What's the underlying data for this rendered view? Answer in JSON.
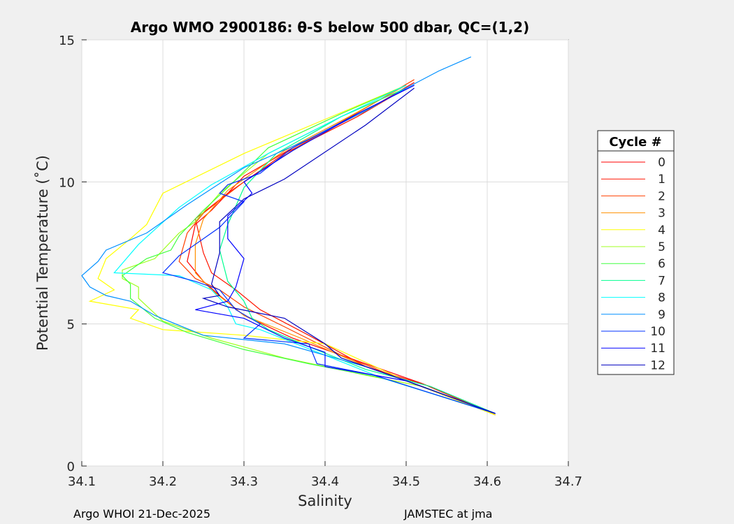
{
  "chart_data": {
    "type": "line",
    "title": "Argo WMO 2900186: θ-S below 500 dbar,  QC=(1,2)",
    "xlabel": "Salinity",
    "ylabel": "Potential Temperature (˚C)",
    "xlim": [
      34.1,
      34.7
    ],
    "ylim": [
      0,
      15
    ],
    "xticks": [
      "34.1",
      "34.2",
      "34.3",
      "34.4",
      "34.5",
      "34.6",
      "34.7"
    ],
    "yticks": [
      "0",
      "5",
      "10",
      "15"
    ],
    "grid": true,
    "legend": {
      "title": "Cycle #",
      "placement": "right"
    },
    "series": [
      {
        "name": "0",
        "color": "#ff0000",
        "points": [
          [
            34.51,
            13.5
          ],
          [
            34.45,
            12.5
          ],
          [
            34.36,
            11.2
          ],
          [
            34.3,
            10.2
          ],
          [
            34.26,
            9.0
          ],
          [
            34.24,
            8.5
          ],
          [
            34.23,
            7.2
          ],
          [
            34.25,
            6.5
          ],
          [
            34.27,
            6.0
          ],
          [
            34.3,
            5.3
          ],
          [
            34.36,
            4.5
          ],
          [
            34.45,
            3.6
          ],
          [
            34.52,
            2.9
          ],
          [
            34.61,
            1.8
          ]
        ]
      },
      {
        "name": "1",
        "color": "#ff1500",
        "points": [
          [
            34.5,
            13.3
          ],
          [
            34.44,
            12.3
          ],
          [
            34.35,
            11.0
          ],
          [
            34.28,
            9.6
          ],
          [
            34.24,
            8.7
          ],
          [
            34.25,
            7.5
          ],
          [
            34.26,
            6.8
          ],
          [
            34.29,
            6.2
          ],
          [
            34.32,
            5.5
          ],
          [
            34.38,
            4.6
          ],
          [
            34.45,
            3.5
          ],
          [
            34.53,
            2.8
          ],
          [
            34.61,
            1.8
          ]
        ]
      },
      {
        "name": "2",
        "color": "#ff4000",
        "points": [
          [
            34.51,
            13.6
          ],
          [
            34.45,
            12.6
          ],
          [
            34.37,
            11.3
          ],
          [
            34.3,
            10.0
          ],
          [
            34.25,
            8.9
          ],
          [
            34.23,
            8.2
          ],
          [
            34.22,
            7.2
          ],
          [
            34.24,
            6.6
          ],
          [
            34.27,
            6.2
          ],
          [
            34.3,
            5.6
          ],
          [
            34.35,
            4.9
          ],
          [
            34.42,
            3.9
          ],
          [
            34.5,
            3.0
          ],
          [
            34.61,
            1.8
          ]
        ]
      },
      {
        "name": "3",
        "color": "#ff9000",
        "points": [
          [
            34.5,
            13.4
          ],
          [
            34.43,
            12.3
          ],
          [
            34.35,
            11.1
          ],
          [
            34.28,
            9.7
          ],
          [
            34.25,
            8.7
          ],
          [
            34.24,
            7.8
          ],
          [
            34.24,
            6.8
          ],
          [
            34.26,
            6.2
          ],
          [
            34.3,
            5.3
          ],
          [
            34.37,
            4.5
          ],
          [
            34.45,
            3.5
          ],
          [
            34.52,
            2.8
          ],
          [
            34.61,
            1.8
          ]
        ]
      },
      {
        "name": "4",
        "color": "#ffff00",
        "points": [
          [
            34.5,
            13.4
          ],
          [
            34.4,
            12.2
          ],
          [
            34.3,
            11.0
          ],
          [
            34.2,
            9.6
          ],
          [
            34.18,
            8.5
          ],
          [
            34.16,
            8.0
          ],
          [
            34.13,
            7.3
          ],
          [
            34.12,
            6.6
          ],
          [
            34.14,
            6.2
          ],
          [
            34.11,
            5.8
          ],
          [
            34.17,
            5.5
          ],
          [
            34.16,
            5.2
          ],
          [
            34.2,
            4.8
          ],
          [
            34.3,
            4.6
          ],
          [
            34.4,
            4.3
          ],
          [
            34.5,
            3.0
          ],
          [
            34.61,
            1.8
          ]
        ]
      },
      {
        "name": "5",
        "color": "#a0ff20",
        "points": [
          [
            34.5,
            13.3
          ],
          [
            34.42,
            12.3
          ],
          [
            34.33,
            11.0
          ],
          [
            34.27,
            9.6
          ],
          [
            34.24,
            8.6
          ],
          [
            34.22,
            8.2
          ],
          [
            34.19,
            7.3
          ],
          [
            34.15,
            6.9
          ],
          [
            34.15,
            6.6
          ],
          [
            34.17,
            6.3
          ],
          [
            34.17,
            5.9
          ],
          [
            34.2,
            5.1
          ],
          [
            34.26,
            4.5
          ],
          [
            34.35,
            3.8
          ],
          [
            34.45,
            3.2
          ],
          [
            34.52,
            2.8
          ],
          [
            34.61,
            1.85
          ]
        ]
      },
      {
        "name": "6",
        "color": "#40ff40",
        "points": [
          [
            34.5,
            13.4
          ],
          [
            34.42,
            12.4
          ],
          [
            34.33,
            11.2
          ],
          [
            34.28,
            9.8
          ],
          [
            34.25,
            9.0
          ],
          [
            34.22,
            8.1
          ],
          [
            34.21,
            7.6
          ],
          [
            34.18,
            7.3
          ],
          [
            34.15,
            6.7
          ],
          [
            34.16,
            6.4
          ],
          [
            34.16,
            5.9
          ],
          [
            34.19,
            5.2
          ],
          [
            34.23,
            4.7
          ],
          [
            34.3,
            4.1
          ],
          [
            34.38,
            3.6
          ],
          [
            34.47,
            3.1
          ],
          [
            34.61,
            1.85
          ]
        ]
      },
      {
        "name": "7",
        "color": "#00ff90",
        "points": [
          [
            34.5,
            13.3
          ],
          [
            34.42,
            12.3
          ],
          [
            34.34,
            11.0
          ],
          [
            34.3,
            9.8
          ],
          [
            34.28,
            8.5
          ],
          [
            34.27,
            7.6
          ],
          [
            34.28,
            6.5
          ],
          [
            34.3,
            5.8
          ],
          [
            34.31,
            5.2
          ],
          [
            34.33,
            4.8
          ],
          [
            34.38,
            4.2
          ],
          [
            34.45,
            3.4
          ],
          [
            34.53,
            2.8
          ],
          [
            34.61,
            1.85
          ]
        ]
      },
      {
        "name": "8",
        "color": "#00ffff",
        "points": [
          [
            34.5,
            13.4
          ],
          [
            34.42,
            12.3
          ],
          [
            34.33,
            11.0
          ],
          [
            34.26,
            9.9
          ],
          [
            34.22,
            9.1
          ],
          [
            34.17,
            7.8
          ],
          [
            34.14,
            6.8
          ],
          [
            34.22,
            6.7
          ],
          [
            34.26,
            6.2
          ],
          [
            34.28,
            5.6
          ],
          [
            34.29,
            5.0
          ],
          [
            34.32,
            4.8
          ],
          [
            34.4,
            3.9
          ],
          [
            34.47,
            3.1
          ],
          [
            34.61,
            1.85
          ]
        ]
      },
      {
        "name": "9",
        "color": "#0090ff",
        "points": [
          [
            34.58,
            14.4
          ],
          [
            34.54,
            13.9
          ],
          [
            34.5,
            13.3
          ],
          [
            34.45,
            12.5
          ],
          [
            34.38,
            11.5
          ],
          [
            34.3,
            10.5
          ],
          [
            34.23,
            9.2
          ],
          [
            34.18,
            8.2
          ],
          [
            34.13,
            7.6
          ],
          [
            34.12,
            7.2
          ],
          [
            34.1,
            6.7
          ],
          [
            34.11,
            6.3
          ],
          [
            34.13,
            6.0
          ],
          [
            34.16,
            5.8
          ],
          [
            34.19,
            5.3
          ],
          [
            34.25,
            4.6
          ],
          [
            34.35,
            4.3
          ],
          [
            34.45,
            3.5
          ],
          [
            34.5,
            3.0
          ],
          [
            34.61,
            1.85
          ]
        ]
      },
      {
        "name": "10",
        "color": "#0030ff",
        "points": [
          [
            34.51,
            13.4
          ],
          [
            34.44,
            12.4
          ],
          [
            34.36,
            11.2
          ],
          [
            34.32,
            10.3
          ],
          [
            34.28,
            9.9
          ],
          [
            34.27,
            9.6
          ],
          [
            34.3,
            9.3
          ],
          [
            34.27,
            8.4
          ],
          [
            34.22,
            7.4
          ],
          [
            34.2,
            6.8
          ],
          [
            34.24,
            6.5
          ],
          [
            34.27,
            6.2
          ],
          [
            34.29,
            5.5
          ],
          [
            34.32,
            5.0
          ],
          [
            34.3,
            4.5
          ],
          [
            34.38,
            4.3
          ],
          [
            34.39,
            3.6
          ],
          [
            34.46,
            3.2
          ],
          [
            34.61,
            1.85
          ]
        ]
      },
      {
        "name": "11",
        "color": "#0000ff",
        "points": [
          [
            34.51,
            13.4
          ],
          [
            34.44,
            12.4
          ],
          [
            34.36,
            11.1
          ],
          [
            34.3,
            10.0
          ],
          [
            34.31,
            9.6
          ],
          [
            34.28,
            8.8
          ],
          [
            34.28,
            8.0
          ],
          [
            34.3,
            7.3
          ],
          [
            34.29,
            6.3
          ],
          [
            34.28,
            5.8
          ],
          [
            34.24,
            5.5
          ],
          [
            34.3,
            5.2
          ],
          [
            34.35,
            4.5
          ],
          [
            34.4,
            4.0
          ],
          [
            34.4,
            3.5
          ],
          [
            34.5,
            3.0
          ],
          [
            34.61,
            1.85
          ]
        ]
      },
      {
        "name": "12",
        "color": "#0000c0",
        "points": [
          [
            34.51,
            13.3
          ],
          [
            34.45,
            12.0
          ],
          [
            34.35,
            10.1
          ],
          [
            34.3,
            9.4
          ],
          [
            34.27,
            8.6
          ],
          [
            34.27,
            7.5
          ],
          [
            34.26,
            6.4
          ],
          [
            34.27,
            6.0
          ],
          [
            34.25,
            5.9
          ],
          [
            34.28,
            5.6
          ],
          [
            34.35,
            5.2
          ],
          [
            34.4,
            4.3
          ],
          [
            34.42,
            3.8
          ],
          [
            34.5,
            3.0
          ],
          [
            34.61,
            1.85
          ]
        ]
      }
    ]
  },
  "footer": {
    "left": "Argo WHOI 21-Dec-2025",
    "right": "JAMSTEC at jma"
  }
}
